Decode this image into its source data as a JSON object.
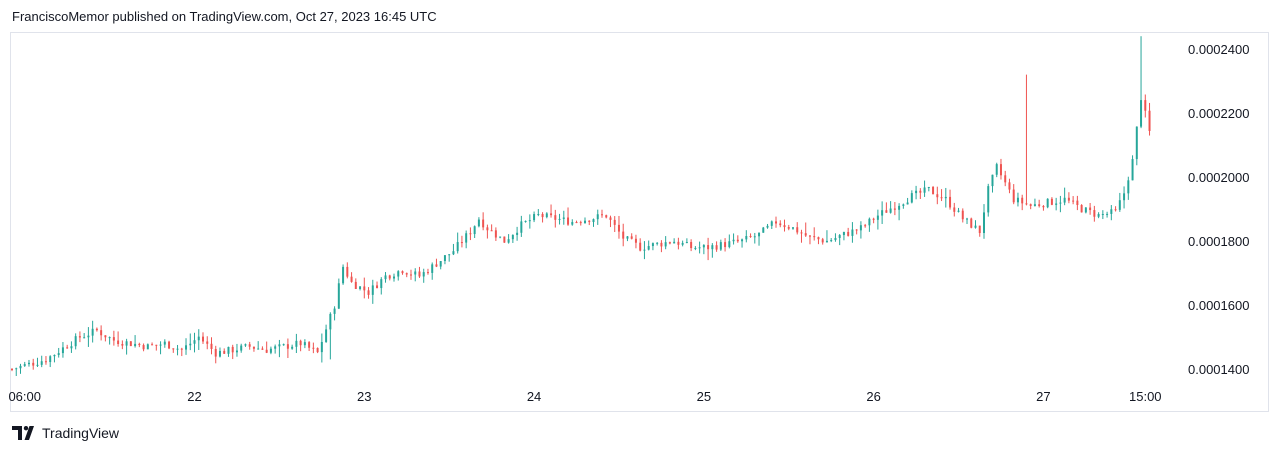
{
  "header": {
    "attribution": "FranciscoMemor published on TradingView.com, Oct 27, 2023 16:45 UTC"
  },
  "footer": {
    "brand": "TradingView",
    "logo_icon": "tradingview-logo-icon"
  },
  "colors": {
    "up": "#26a69a",
    "down": "#ef5350",
    "text": "#131722",
    "border": "#e0e3eb"
  },
  "chart_data": {
    "type": "candlestick",
    "title": "",
    "xlabel": "",
    "ylabel": "",
    "y_axis_position": "right",
    "ylim": [
      0.000136,
      0.000245
    ],
    "y_ticks": [
      "0.0001400",
      "0.0001600",
      "0.0001800",
      "0.0002000",
      "0.0002200",
      "0.0002400"
    ],
    "x_ticks": [
      {
        "label": "06:00",
        "x": 1.5
      },
      {
        "label": "22",
        "x": 21.5
      },
      {
        "label": "23",
        "x": 41.5
      },
      {
        "label": "24",
        "x": 61.5
      },
      {
        "label": "25",
        "x": 81.5
      },
      {
        "label": "26",
        "x": 101.5
      },
      {
        "label": "27",
        "x": 121.5
      },
      {
        "label": "15:00",
        "x": 133.5
      }
    ],
    "grid": false,
    "x": [
      0,
      4,
      8,
      10,
      12,
      14,
      16,
      18,
      20,
      22,
      24,
      26,
      28,
      30,
      32,
      34,
      36,
      38,
      39,
      40,
      42,
      44,
      46,
      48,
      50,
      52,
      54,
      55,
      56,
      58,
      60,
      62,
      64,
      66,
      68,
      70,
      72,
      74,
      76,
      78,
      80,
      82,
      84,
      86,
      88,
      90,
      92,
      94,
      96,
      98,
      100,
      102,
      104,
      106,
      108,
      110,
      112,
      114,
      115,
      116,
      118,
      120,
      122,
      124,
      126,
      128,
      130,
      131,
      132,
      133,
      134
    ],
    "y": [
      0.00014,
      0.000143,
      0.00015,
      0.000152,
      0.000149,
      0.000148,
      0.000147,
      0.000148,
      0.000146,
      0.00015,
      0.000145,
      0.000146,
      0.000147,
      0.000146,
      0.000147,
      0.000148,
      0.000145,
      0.00016,
      0.000172,
      0.000167,
      0.000164,
      0.000169,
      0.000171,
      0.000169,
      0.000173,
      0.000177,
      0.000183,
      0.000187,
      0.000184,
      0.00018,
      0.000185,
      0.000188,
      0.000187,
      0.000186,
      0.000187,
      0.000188,
      0.000181,
      0.000178,
      0.000179,
      0.00018,
      0.000178,
      0.000178,
      0.000179,
      0.00018,
      0.000182,
      0.000186,
      0.000184,
      0.000181,
      0.00018,
      0.000182,
      0.000184,
      0.000188,
      0.000191,
      0.000194,
      0.000196,
      0.000193,
      0.000187,
      0.000183,
      0.000196,
      0.000203,
      0.000193,
      0.000191,
      0.000192,
      0.000193,
      0.00019,
      0.000188,
      0.000189,
      0.000195,
      0.000205,
      0.000225,
      0.000214
    ]
  }
}
